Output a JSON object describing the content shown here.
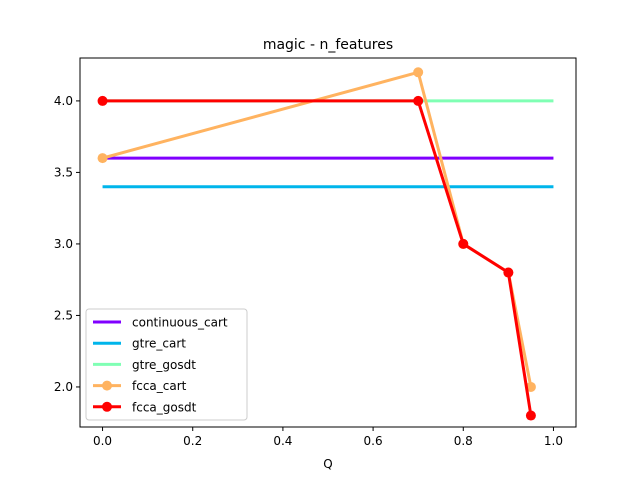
{
  "chart_data": {
    "type": "line",
    "title": "magic - n_features",
    "xlabel": "Q",
    "ylabel": "",
    "xlim": [
      -0.05,
      1.05
    ],
    "ylim": [
      1.72,
      4.3
    ],
    "x_ticks": [
      0.0,
      0.2,
      0.4,
      0.6,
      0.8,
      1.0
    ],
    "x_tick_labels": [
      "0.0",
      "0.2",
      "0.4",
      "0.6",
      "0.8",
      "1.0"
    ],
    "y_ticks": [
      2.0,
      2.5,
      3.0,
      3.5,
      4.0
    ],
    "y_tick_labels": [
      "2.0",
      "2.5",
      "3.0",
      "3.5",
      "4.0"
    ],
    "grid": false,
    "legend_position": "lower-left",
    "series": [
      {
        "name": "continuous_cart",
        "color": "#8000ff",
        "marker": false,
        "x": [
          0.0,
          1.0
        ],
        "y": [
          3.6,
          3.6
        ]
      },
      {
        "name": "gtre_cart",
        "color": "#00b5eb",
        "marker": false,
        "x": [
          0.0,
          1.0
        ],
        "y": [
          3.4,
          3.4
        ]
      },
      {
        "name": "gtre_gosdt",
        "color": "#80ffb4",
        "marker": false,
        "x": [
          0.0,
          1.0
        ],
        "y": [
          4.0,
          4.0
        ]
      },
      {
        "name": "fcca_cart",
        "color": "#ffb360",
        "marker": true,
        "x": [
          0.0,
          0.7,
          0.8,
          0.9,
          0.95
        ],
        "y": [
          3.6,
          4.2,
          3.0,
          2.8,
          2.0
        ]
      },
      {
        "name": "fcca_gosdt",
        "color": "#ff0000",
        "marker": true,
        "x": [
          0.0,
          0.7,
          0.8,
          0.9,
          0.95
        ],
        "y": [
          4.0,
          4.0,
          3.0,
          2.8,
          1.8
        ]
      }
    ]
  }
}
